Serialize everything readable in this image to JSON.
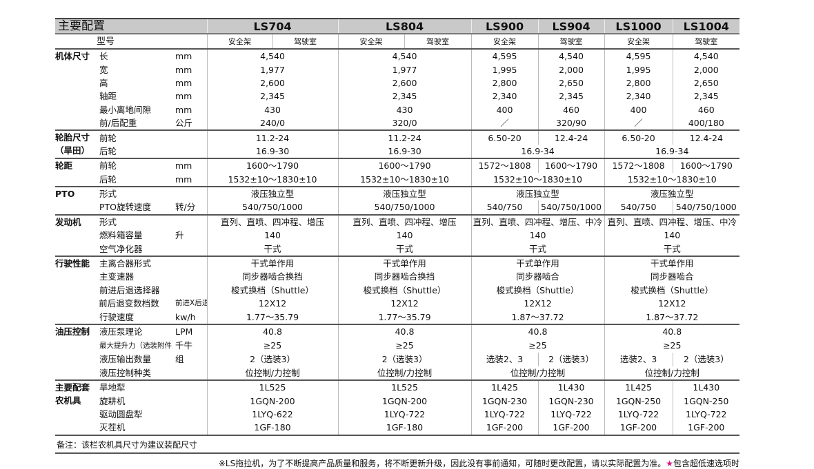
{
  "header": {
    "title": "主要配置",
    "models": [
      "LS704",
      "LS804",
      "LS900",
      "LS904",
      "LS1000",
      "LS1004"
    ],
    "model_label": "型号",
    "safety_frame": "安全架",
    "cab": "驾驶室"
  },
  "accent_color": "#d8157a",
  "groups": [
    {
      "category": "机体尺寸",
      "rows": [
        {
          "item": "长",
          "unit": "mm",
          "cells": [
            [
              "4,540",
              2
            ],
            [
              "4,540",
              2
            ],
            [
              "4,595",
              1
            ],
            [
              "4,540",
              1
            ],
            [
              "4,595",
              1
            ],
            [
              "4,540",
              1
            ]
          ]
        },
        {
          "item": "宽",
          "unit": "mm",
          "cells": [
            [
              "1,977",
              2
            ],
            [
              "1,977",
              2
            ],
            [
              "1,995",
              1
            ],
            [
              "2,000",
              1
            ],
            [
              "1,995",
              1
            ],
            [
              "2,000",
              1
            ]
          ]
        },
        {
          "item": "高",
          "unit": "mm",
          "cells": [
            [
              "2,600",
              2
            ],
            [
              "2,600",
              2
            ],
            [
              "2,800",
              1
            ],
            [
              "2,650",
              1
            ],
            [
              "2,800",
              1
            ],
            [
              "2,650",
              1
            ]
          ]
        },
        {
          "item": "轴距",
          "unit": "mm",
          "cells": [
            [
              "2,345",
              2
            ],
            [
              "2,345",
              2
            ],
            [
              "2,340",
              1
            ],
            [
              "2,345",
              1
            ],
            [
              "2,340",
              1
            ],
            [
              "2,345",
              1
            ]
          ]
        },
        {
          "item": "最小离地间隙",
          "unit": "mm",
          "cells": [
            [
              "430",
              2
            ],
            [
              "430",
              2
            ],
            [
              "400",
              1
            ],
            [
              "460",
              1
            ],
            [
              "400",
              1
            ],
            [
              "460",
              1
            ]
          ]
        },
        {
          "item": "前/后配重",
          "unit": "公斤",
          "cells": [
            [
              "240/0",
              2
            ],
            [
              "320/0",
              2
            ],
            [
              "／",
              1
            ],
            [
              "320/90",
              1
            ],
            [
              "／",
              1
            ],
            [
              "400/180",
              1
            ]
          ]
        }
      ]
    },
    {
      "category": "轮胎尺寸（旱田）",
      "rows": [
        {
          "item": "前轮",
          "unit": "",
          "cells": [
            [
              "11.2-24",
              2
            ],
            [
              "11.2-24",
              2
            ],
            [
              "6.50-20",
              1
            ],
            [
              "12.4-24",
              1
            ],
            [
              "6.50-20",
              1
            ],
            [
              "12.4-24",
              1
            ]
          ]
        },
        {
          "item": "后轮",
          "unit": "",
          "cells": [
            [
              "16.9-30",
              2
            ],
            [
              "16.9-30",
              2
            ],
            [
              "16.9-34",
              2
            ],
            [
              "16.9-34",
              2
            ]
          ]
        }
      ]
    },
    {
      "category": "轮距",
      "rows": [
        {
          "item": "前轮",
          "unit": "mm",
          "cells": [
            [
              "1600～1790",
              2
            ],
            [
              "1600～1790",
              2
            ],
            [
              "1572～1808",
              1
            ],
            [
              "1600～1790",
              1
            ],
            [
              "1572～1808",
              1
            ],
            [
              "1600～1790",
              1
            ]
          ]
        },
        {
          "item": "后轮",
          "unit": "mm",
          "cells": [
            [
              "1532±10～1830±10",
              2
            ],
            [
              "1532±10～1830±10",
              2
            ],
            [
              "1532±10～1830±10",
              2
            ],
            [
              "1532±10～1830±10",
              2
            ]
          ]
        }
      ]
    },
    {
      "category": "PTO",
      "rows": [
        {
          "item": "形式",
          "unit": "",
          "cells": [
            [
              "液压独立型",
              2
            ],
            [
              "液压独立型",
              2
            ],
            [
              "液压独立型",
              2
            ],
            [
              "液压独立型",
              2
            ]
          ]
        },
        {
          "item": "PTO旋转速度",
          "unit": "转/分",
          "cells": [
            [
              "540/750/1000",
              2
            ],
            [
              "540/750/1000",
              2
            ],
            [
              "540/750",
              1
            ],
            [
              "540/750/1000",
              1
            ],
            [
              "540/750",
              1
            ],
            [
              "540/750/1000",
              1
            ]
          ]
        }
      ]
    },
    {
      "category": "发动机",
      "rows": [
        {
          "item": "形式",
          "unit": "",
          "cells": [
            [
              "直列、直喷、四冲程、增压",
              2
            ],
            [
              "直列、直喷、四冲程、增压",
              2
            ],
            [
              "直列、直喷、四冲程、增压、中冷",
              2
            ],
            [
              "直列、直喷、四冲程、增压、中冷",
              2
            ]
          ]
        },
        {
          "item": "燃料箱容量",
          "unit": "升",
          "cells": [
            [
              "140",
              2
            ],
            [
              "140",
              2
            ],
            [
              "140",
              2
            ],
            [
              "140",
              2
            ]
          ]
        },
        {
          "item": "空气净化器",
          "unit": "",
          "cells": [
            [
              "干式",
              2
            ],
            [
              "干式",
              2
            ],
            [
              "干式",
              2
            ],
            [
              "干式",
              2
            ]
          ]
        }
      ]
    },
    {
      "category": "行驶性能",
      "rows": [
        {
          "item": "主离合器形式",
          "unit": "",
          "cells": [
            [
              "干式单作用",
              2
            ],
            [
              "干式单作用",
              2
            ],
            [
              "干式单作用",
              2
            ],
            [
              "干式单作用",
              2
            ]
          ]
        },
        {
          "item": "主变速器",
          "unit": "",
          "cells": [
            [
              "同步器啮合换挡",
              2
            ],
            [
              "同步器啮合换挡",
              2
            ],
            [
              "同步器啮合",
              2
            ],
            [
              "同步器啮合",
              2
            ]
          ]
        },
        {
          "item": "前进后退选择器",
          "unit": "",
          "cells": [
            [
              "梭式换档（Shuttle）",
              2
            ],
            [
              "梭式换档（Shuttle）",
              2
            ],
            [
              "梭式换档（Shuttle）",
              2
            ],
            [
              "梭式换档（Shuttle）",
              2
            ]
          ]
        },
        {
          "item": "前后退变数档数",
          "unit": "前进X后退",
          "star": "★",
          "cells": [
            [
              "12X12",
              2
            ],
            [
              "12X12",
              2
            ],
            [
              "12X12",
              2
            ],
            [
              "12X12",
              2
            ]
          ]
        },
        {
          "item": "行驶速度",
          "unit": "kw/h",
          "cells": [
            [
              "1.77～35.79",
              2
            ],
            [
              "1.77～35.79",
              2
            ],
            [
              "1.87～37.72",
              2
            ],
            [
              "1.87～37.72",
              2
            ]
          ]
        }
      ]
    },
    {
      "category": "油压控制",
      "rows": [
        {
          "item": "液压泵理论",
          "unit": "LPM",
          "cells": [
            [
              "40.8",
              2
            ],
            [
              "40.8",
              2
            ],
            [
              "40.8",
              2
            ],
            [
              "40.8",
              2
            ]
          ]
        },
        {
          "item": "最大提升力（选装附件）",
          "unit": "千牛",
          "cells": [
            [
              "≥25",
              2
            ],
            [
              "≥25",
              2
            ],
            [
              "≥25",
              2
            ],
            [
              "≥25",
              2
            ]
          ]
        },
        {
          "item": "液压输出数量",
          "unit": "组",
          "cells": [
            [
              "2（选装3）",
              2
            ],
            [
              "2（选装3）",
              2
            ],
            [
              "选装2、3",
              1
            ],
            [
              "2（选装3）",
              1
            ],
            [
              "选装2、3",
              1
            ],
            [
              "2（选装3）",
              1
            ]
          ]
        },
        {
          "item": "液压控制种类",
          "unit": "",
          "cells": [
            [
              "位控制/力控制",
              2
            ],
            [
              "位控制/力控制",
              2
            ],
            [
              "位控制/力控制",
              2
            ],
            [
              "位控制/力控制",
              2
            ]
          ]
        }
      ]
    },
    {
      "category": "主要配套农机具",
      "rows": [
        {
          "item": "旱地犁",
          "unit": "",
          "cells": [
            [
              "1L525",
              2
            ],
            [
              "1L525",
              2
            ],
            [
              "1L425",
              1
            ],
            [
              "1L430",
              1
            ],
            [
              "1L425",
              1
            ],
            [
              "1L430",
              1
            ]
          ]
        },
        {
          "item": "旋耕机",
          "unit": "",
          "cells": [
            [
              "1GQN-200",
              2
            ],
            [
              "1GQN-200",
              2
            ],
            [
              "1GQN-230",
              1
            ],
            [
              "1GQN-230",
              1
            ],
            [
              "1GQN-250",
              1
            ],
            [
              "1GQN-250",
              1
            ]
          ]
        },
        {
          "item": "驱动圆盘犁",
          "unit": "",
          "cells": [
            [
              "1LYQ-622",
              2
            ],
            [
              "1LYQ-722",
              2
            ],
            [
              "1LYQ-722",
              1
            ],
            [
              "1LYQ-722",
              1
            ],
            [
              "1LYQ-722",
              1
            ],
            [
              "1LYQ-722",
              1
            ]
          ]
        },
        {
          "item": "灭茬机",
          "unit": "",
          "cells": [
            [
              "1GF-180",
              2
            ],
            [
              "1GF-180",
              2
            ],
            [
              "1GF-200",
              1
            ],
            [
              "1GF-200",
              1
            ],
            [
              "1GF-200",
              1
            ],
            [
              "1GF-200",
              1
            ]
          ]
        }
      ]
    }
  ],
  "footer": {
    "note": "备注：该栏农机具尺寸为建议装配尺寸",
    "notice": "※LS拖拉机，为了不断提高产品质量和服务，将不断更新升级，因此没有事前通知，可随时更改配置，请以实际配置为准。",
    "star": "★",
    "star_note": "包含超低速选项时"
  }
}
